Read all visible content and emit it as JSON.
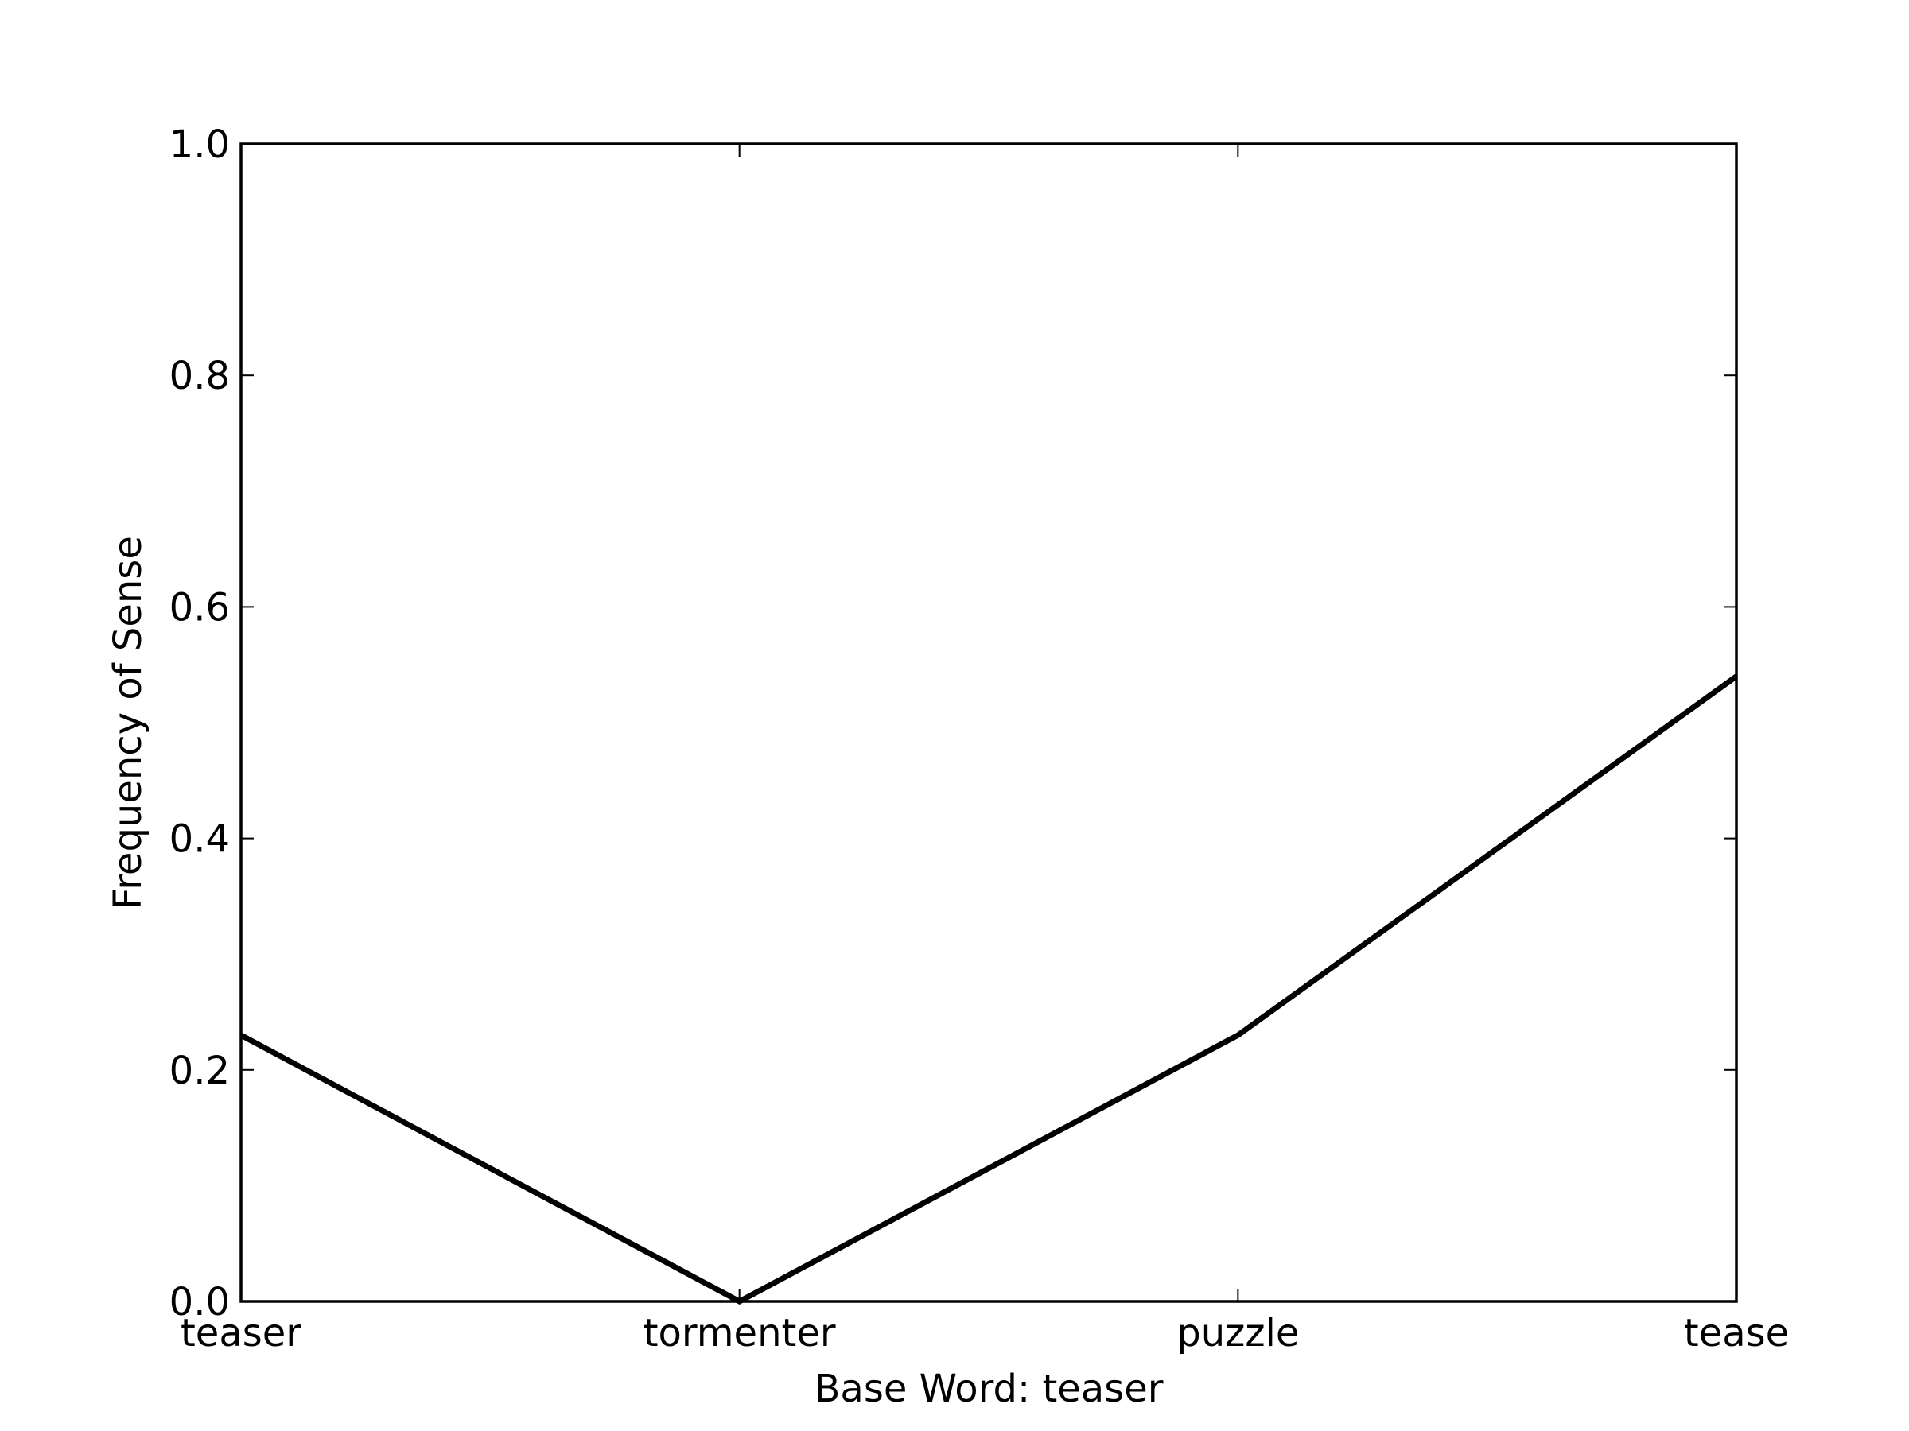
{
  "chart_data": {
    "type": "line",
    "title": "",
    "xlabel": "Base Word: teaser",
    "ylabel": "Frequency of Sense",
    "categories": [
      "teaser",
      "tormenter",
      "puzzle",
      "tease"
    ],
    "series": [
      {
        "values": [
          0.23,
          0.0,
          0.23,
          0.54
        ]
      }
    ],
    "ylim": [
      0.0,
      1.0
    ],
    "yticks": [
      0.0,
      0.2,
      0.4,
      0.6,
      0.8,
      1.0
    ],
    "ytick_labels": [
      "0.0",
      "0.2",
      "0.4",
      "0.6",
      "0.8",
      "1.0"
    ],
    "grid": false,
    "line_color": "#000000"
  }
}
